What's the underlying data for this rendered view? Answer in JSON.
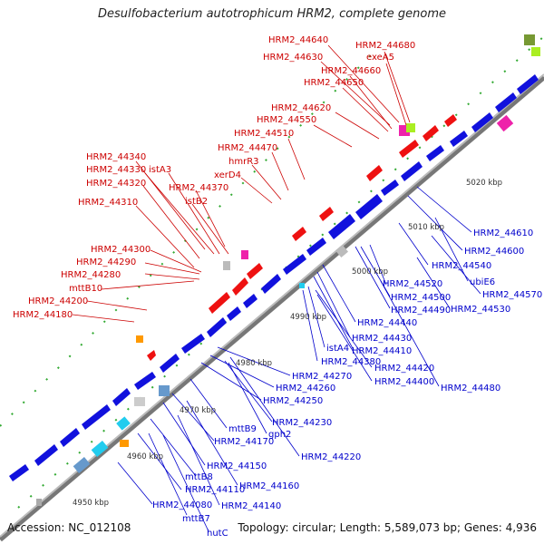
{
  "title": "Desulfobacterium autotrophicum HRM2, complete genome",
  "footer": {
    "accession": "Accession: NC_012108",
    "topology": "Topology: circular; Length: 5,589,073 bp; Genes: 4,936"
  },
  "kbp_ticks": [
    "4950 kbp",
    "4960 kbp",
    "4970 kbp",
    "4980 kbp",
    "4990 kbp",
    "5000 kbp",
    "5010 kbp",
    "5020 kbp"
  ],
  "labels_forward": [
    "HRM2_44640",
    "HRM2_44680",
    "HRM2_44630",
    "exeA5",
    "HRM2_44660",
    "HRM2_44650",
    "HRM2_44620",
    "HRM2_44550",
    "HRM2_44510",
    "HRM2_44470",
    "HRM2_44340",
    "hmrR3",
    "HRM2_44330",
    "istA3",
    "xerD4",
    "HRM2_44320",
    "HRM2_44370",
    "istB2",
    "HRM2_44310",
    "HRM2_44300",
    "HRM2_44290",
    "HRM2_44280",
    "mttB10",
    "HRM2_44200",
    "HRM2_44180"
  ],
  "labels_reverse": [
    "HRM2_44610",
    "5010 kbp",
    "HRM2_44600",
    "HRM2_44540",
    "HRM2_44520",
    "ubiE6",
    "HRM2_44570",
    "HRM2_44500",
    "HRM2_44490",
    "HRM2_44530",
    "HRM2_44440",
    "HRM2_44430",
    "HRM2_44410",
    "istA4",
    "HRM2_44380",
    "HRM2_44420",
    "HRM2_44400",
    "HRM2_44480",
    "HRM2_44270",
    "HRM2_44260",
    "HRM2_44250",
    "HRM2_44230",
    "gph2",
    "mttB9",
    "HRM2_44170",
    "HRM2_44220",
    "HRM2_44150",
    "HRM2_44160",
    "mttB8",
    "HRM2_44110",
    "HRM2_44140",
    "HRM2_44080",
    "mttB7",
    "hutC"
  ],
  "colors": {
    "forward": "#ee1111",
    "reverse": "#1111dd",
    "backbone": "#888888",
    "gc": "#339933",
    "label_forward": "#cc0000",
    "label_reverse": "#0000cc"
  }
}
